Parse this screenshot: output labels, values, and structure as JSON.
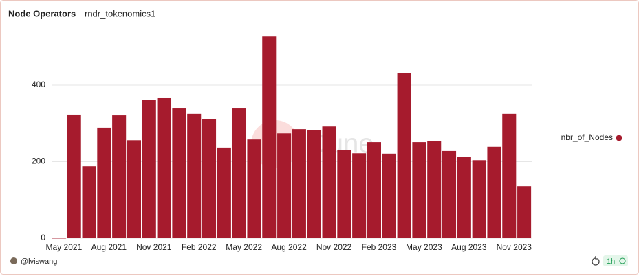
{
  "chart_data": {
    "type": "bar",
    "title": "Node Operators",
    "subtitle": "rndr_tokenomics1",
    "watermark": "Dune",
    "author": "@lviswang",
    "refresh": "1h",
    "categories": [
      "May 2021",
      null,
      null,
      "Aug 2021",
      null,
      null,
      "Nov 2021",
      null,
      null,
      "Feb 2022",
      null,
      null,
      "May 2022",
      null,
      null,
      "Aug 2022",
      null,
      null,
      "Nov 2022",
      null,
      null,
      "Feb 2023",
      null,
      null,
      "May 2023",
      null,
      null,
      "Aug 2023",
      null,
      null,
      "Nov 2023",
      null
    ],
    "series": [
      {
        "name": "nbr_of_Nodes",
        "color": "#a61b2d",
        "values": [
          1,
          323,
          188,
          289,
          321,
          256,
          362,
          366,
          339,
          325,
          312,
          237,
          339,
          258,
          527,
          274,
          285,
          282,
          292,
          231,
          222,
          251,
          221,
          432,
          251,
          253,
          228,
          213,
          204,
          239,
          325,
          136
        ]
      }
    ],
    "ylim": [
      0,
      540
    ],
    "yticks": [
      0,
      200,
      400
    ],
    "grid": true,
    "legend": "right"
  }
}
